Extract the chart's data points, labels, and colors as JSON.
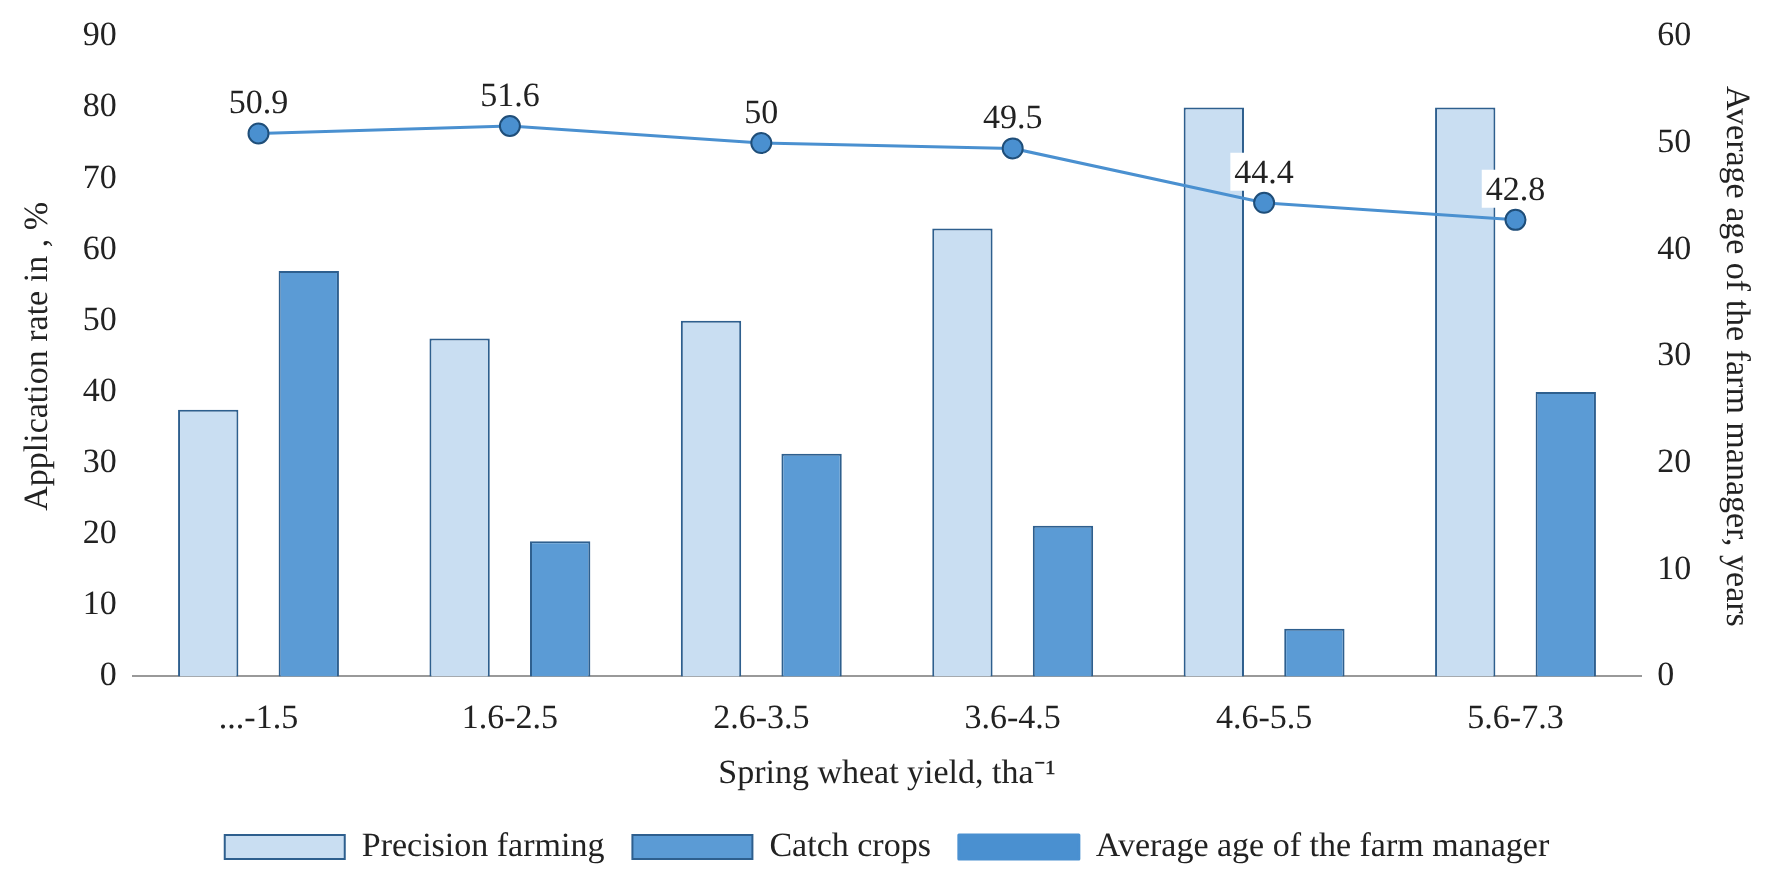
{
  "chart_data": {
    "type": "bar",
    "xlabel": "Spring wheat yield, tha⁻¹",
    "ylabel": "Application rate in , %",
    "y2label": "Average age of the farm manager, years",
    "categories": [
      "...-1.5",
      "1.6-2.5",
      "2.6-3.5",
      "3.6-4.5",
      "4.6-5.5",
      "5.6-7.3"
    ],
    "series": [
      {
        "name": "Precision farming",
        "color": "#c9def2",
        "values": [
          37.5,
          47.5,
          50,
          63,
          80,
          80
        ]
      },
      {
        "name": "Catch crops",
        "color": "#5b9bd5",
        "values": [
          57,
          19,
          31.3,
          21.2,
          6.7,
          40
        ]
      },
      {
        "name": "Average age of the farm manager",
        "type": "line",
        "axis": "y2",
        "color": "#4a90d0",
        "marker": "circle",
        "values": [
          50.9,
          51.6,
          50,
          49.5,
          44.4,
          42.8
        ],
        "value_labels": [
          "50.9",
          "51.6",
          "50",
          "49.5",
          "44.4",
          "42.8"
        ]
      }
    ],
    "ylim": [
      0,
      90
    ],
    "yticks": [
      0,
      10,
      20,
      30,
      40,
      50,
      60,
      70,
      80,
      90
    ],
    "y2lim": [
      0,
      60
    ],
    "y2ticks": [
      0,
      10,
      20,
      30,
      40,
      50,
      60
    ],
    "grid": false,
    "legend": "bottom"
  }
}
